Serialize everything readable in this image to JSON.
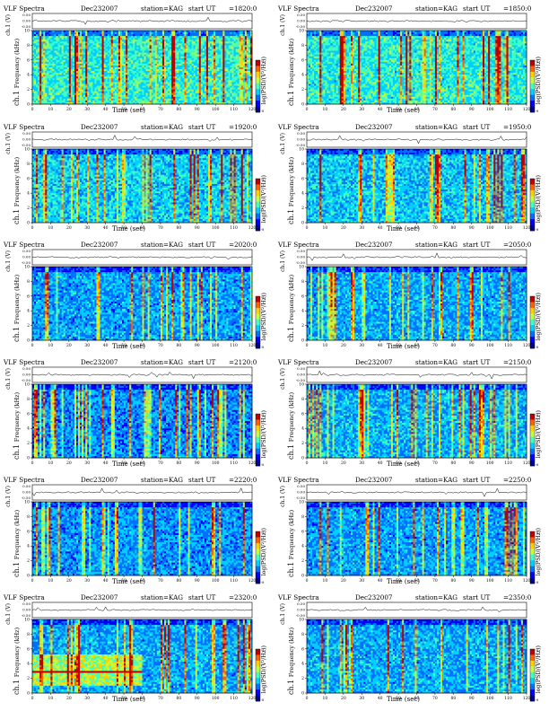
{
  "header": {
    "title": "VLF Spectra",
    "date": "Dec232007",
    "station": "station=KAG",
    "start_label": "start  UT"
  },
  "labels": {
    "ch_label": "ch.1 (V)",
    "ch_ticks": [
      "0.50",
      "0.00",
      "-0.50"
    ],
    "y_label_prefix": "ch.1",
    "y_label": "Frequency  (kHz)",
    "y_ticks": [
      "0",
      "2",
      "4",
      "6",
      "8",
      "10"
    ],
    "x_label": "Time  (sec)",
    "x_ticks": [
      "0",
      "10",
      "20",
      "30",
      "40",
      "50",
      "60",
      "70",
      "80",
      "90",
      "100",
      "110",
      "120"
    ],
    "colorbar_label": "log(PSD/(V²/Hz))",
    "colorbar_ticks": [
      "-1",
      "-8"
    ]
  },
  "colors": {
    "background": "#000080",
    "colormap": [
      "#00008f",
      "#0000ff",
      "#0070ff",
      "#00d0ff",
      "#40ffc0",
      "#c0ff40",
      "#ffd000",
      "#ff6000",
      "#c00000"
    ]
  },
  "chart_data": [
    {
      "type": "heatmap",
      "title": "VLF Spectra",
      "start_ut": "=1820:0",
      "x_range": [
        0,
        120
      ],
      "y_range": [
        0,
        10
      ],
      "intensity": 0.62,
      "low_band": false
    },
    {
      "type": "heatmap",
      "title": "VLF Spectra",
      "start_ut": "=1850:0",
      "x_range": [
        0,
        120
      ],
      "y_range": [
        0,
        10
      ],
      "intensity": 0.6,
      "low_band": false
    },
    {
      "type": "heatmap",
      "title": "VLF Spectra",
      "start_ut": "=1920:0",
      "x_range": [
        0,
        120
      ],
      "y_range": [
        0,
        10
      ],
      "intensity": 0.5,
      "low_band": false
    },
    {
      "type": "heatmap",
      "title": "VLF Spectra",
      "start_ut": "=1950:0",
      "x_range": [
        0,
        120
      ],
      "y_range": [
        0,
        10
      ],
      "intensity": 0.48,
      "low_band": false
    },
    {
      "type": "heatmap",
      "title": "VLF Spectra",
      "start_ut": "=2020:0",
      "x_range": [
        0,
        120
      ],
      "y_range": [
        0,
        10
      ],
      "intensity": 0.38,
      "low_band": false
    },
    {
      "type": "heatmap",
      "title": "VLF Spectra",
      "start_ut": "=2050:0",
      "x_range": [
        0,
        120
      ],
      "y_range": [
        0,
        10
      ],
      "intensity": 0.4,
      "low_band": false
    },
    {
      "type": "heatmap",
      "title": "VLF Spectra",
      "start_ut": "=2120:0",
      "x_range": [
        0,
        120
      ],
      "y_range": [
        0,
        10
      ],
      "intensity": 0.33,
      "low_band": false
    },
    {
      "type": "heatmap",
      "title": "VLF Spectra",
      "start_ut": "=2150:0",
      "x_range": [
        0,
        120
      ],
      "y_range": [
        0,
        10
      ],
      "intensity": 0.42,
      "low_band": false
    },
    {
      "type": "heatmap",
      "title": "VLF Spectra",
      "start_ut": "=2220:0",
      "x_range": [
        0,
        120
      ],
      "y_range": [
        0,
        10
      ],
      "intensity": 0.36,
      "low_band": false
    },
    {
      "type": "heatmap",
      "title": "VLF Spectra",
      "start_ut": "=2250:0",
      "x_range": [
        0,
        120
      ],
      "y_range": [
        0,
        10
      ],
      "intensity": 0.38,
      "low_band": false
    },
    {
      "type": "heatmap",
      "title": "VLF Spectra",
      "start_ut": "=2320:0",
      "x_range": [
        0,
        120
      ],
      "y_range": [
        0,
        10
      ],
      "intensity": 0.4,
      "low_band": true
    },
    {
      "type": "heatmap",
      "title": "VLF Spectra",
      "start_ut": "=2350:0",
      "x_range": [
        0,
        120
      ],
      "y_range": [
        0,
        10
      ],
      "intensity": 0.4,
      "low_band": false
    }
  ]
}
